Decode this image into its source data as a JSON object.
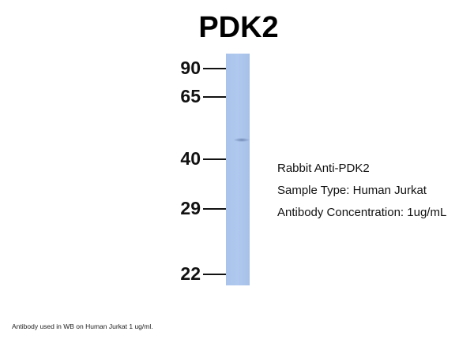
{
  "title": "PDK2",
  "markers": [
    {
      "label": "90"
    },
    {
      "label": "65"
    },
    {
      "label": "40"
    },
    {
      "label": "29"
    },
    {
      "label": "22"
    }
  ],
  "info": {
    "antibody": "Rabbit Anti-PDK2",
    "sample": "Sample Type: Human Jurkat",
    "concentration": "Antibody Concentration: 1ug/mL"
  },
  "footnote": "Antibody used in WB on Human Jurkat 1 ug/ml.",
  "colors": {
    "lane": "#aec6ec",
    "band": "#6e87b3"
  }
}
